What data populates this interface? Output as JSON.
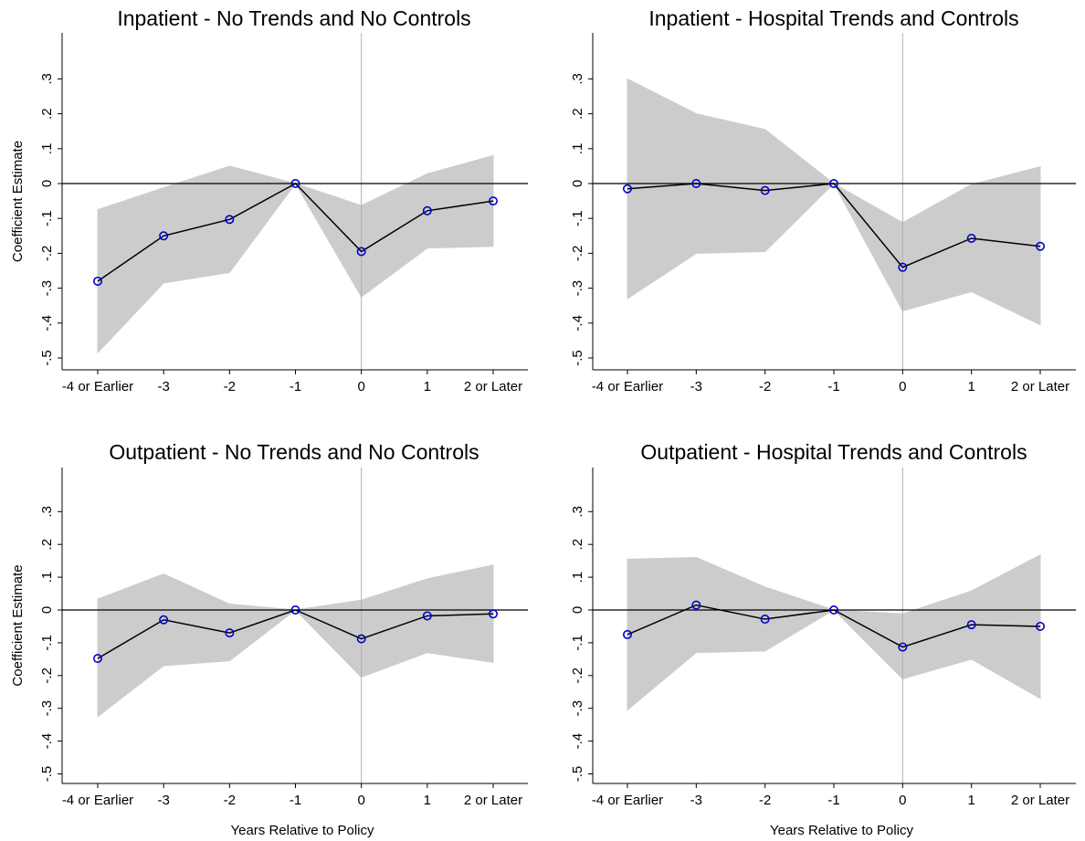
{
  "chart_data": [
    {
      "type": "line",
      "title": "Inpatient - No Trends and No Controls",
      "xlabel": "",
      "ylabel": "Coefficient Estimate",
      "categories": [
        "-4 or Earlier",
        "-3",
        "-2",
        "-1",
        "0",
        "1",
        "2 or Later"
      ],
      "y_ticks": [
        ".3",
        ".2",
        ".1",
        "0",
        "-.1",
        "-.2",
        "-.3",
        "-.4",
        "-.5"
      ],
      "ylim": [
        -0.5,
        0.4
      ],
      "reference_lines": {
        "horizontal_at": 0,
        "vertical_at_category": "0"
      },
      "colors": {
        "line": "#000000",
        "marker": "#0000cc",
        "band": "#cccccc"
      },
      "series": [
        {
          "values": [
            -0.28,
            -0.15,
            -0.103,
            0.0,
            -0.195,
            -0.078,
            -0.05
          ],
          "ci_lower": [
            -0.485,
            -0.285,
            -0.255,
            0.0,
            -0.325,
            -0.185,
            -0.18
          ],
          "ci_upper": [
            -0.075,
            -0.012,
            0.05,
            0.0,
            -0.063,
            0.028,
            0.08
          ]
        }
      ]
    },
    {
      "type": "line",
      "title": "Inpatient - Hospital Trends and Controls",
      "xlabel": "",
      "ylabel": "",
      "categories": [
        "-4 or Earlier",
        "-3",
        "-2",
        "-1",
        "0",
        "1",
        "2 or Later"
      ],
      "y_ticks": [
        ".3",
        ".2",
        ".1",
        "0",
        "-.1",
        "-.2",
        "-.3",
        "-.4",
        "-.5"
      ],
      "ylim": [
        -0.5,
        0.4
      ],
      "reference_lines": {
        "horizontal_at": 0,
        "vertical_at_category": "0"
      },
      "colors": {
        "line": "#000000",
        "marker": "#0000cc",
        "band": "#cccccc"
      },
      "series": [
        {
          "values": [
            -0.015,
            0.0,
            -0.02,
            0.0,
            -0.24,
            -0.157,
            -0.18
          ],
          "ci_lower": [
            -0.33,
            -0.2,
            -0.195,
            0.0,
            -0.365,
            -0.31,
            -0.405
          ],
          "ci_upper": [
            0.3,
            0.2,
            0.155,
            0.0,
            -0.112,
            -0.003,
            0.048
          ]
        }
      ]
    },
    {
      "type": "line",
      "title": "Outpatient - No Trends and No Controls",
      "xlabel": "Years Relative to Policy",
      "ylabel": "Coefficient Estimate",
      "categories": [
        "-4 or Earlier",
        "-3",
        "-2",
        "-1",
        "0",
        "1",
        "2 or Later"
      ],
      "y_ticks": [
        ".3",
        ".2",
        ".1",
        "0",
        "-.1",
        "-.2",
        "-.3",
        "-.4",
        "-.5"
      ],
      "ylim": [
        -0.5,
        0.4
      ],
      "reference_lines": {
        "horizontal_at": 0,
        "vertical_at_category": "0"
      },
      "colors": {
        "line": "#000000",
        "marker": "#0000cc",
        "band": "#cccccc"
      },
      "series": [
        {
          "values": [
            -0.148,
            -0.03,
            -0.07,
            0.0,
            -0.088,
            -0.018,
            -0.012
          ],
          "ci_lower": [
            -0.325,
            -0.17,
            -0.155,
            0.0,
            -0.205,
            -0.13,
            -0.16
          ],
          "ci_upper": [
            0.033,
            0.11,
            0.018,
            0.0,
            0.03,
            0.095,
            0.137
          ]
        }
      ]
    },
    {
      "type": "line",
      "title": "Outpatient - Hospital Trends and Controls",
      "xlabel": "Years Relative to Policy",
      "ylabel": "",
      "categories": [
        "-4 or Earlier",
        "-3",
        "-2",
        "-1",
        "0",
        "1",
        "2 or Later"
      ],
      "y_ticks": [
        ".3",
        ".2",
        ".1",
        "0",
        "-.1",
        "-.2",
        "-.3",
        "-.4",
        "-.5"
      ],
      "ylim": [
        -0.5,
        0.4
      ],
      "reference_lines": {
        "horizontal_at": 0,
        "vertical_at_category": "0"
      },
      "colors": {
        "line": "#000000",
        "marker": "#0000cc",
        "band": "#cccccc"
      },
      "series": [
        {
          "values": [
            -0.075,
            0.015,
            -0.028,
            0.0,
            -0.113,
            -0.045,
            -0.05
          ],
          "ci_lower": [
            -0.305,
            -0.13,
            -0.125,
            0.0,
            -0.21,
            -0.15,
            -0.27
          ],
          "ci_upper": [
            0.155,
            0.16,
            0.07,
            0.0,
            -0.012,
            0.058,
            0.168
          ]
        }
      ]
    }
  ]
}
